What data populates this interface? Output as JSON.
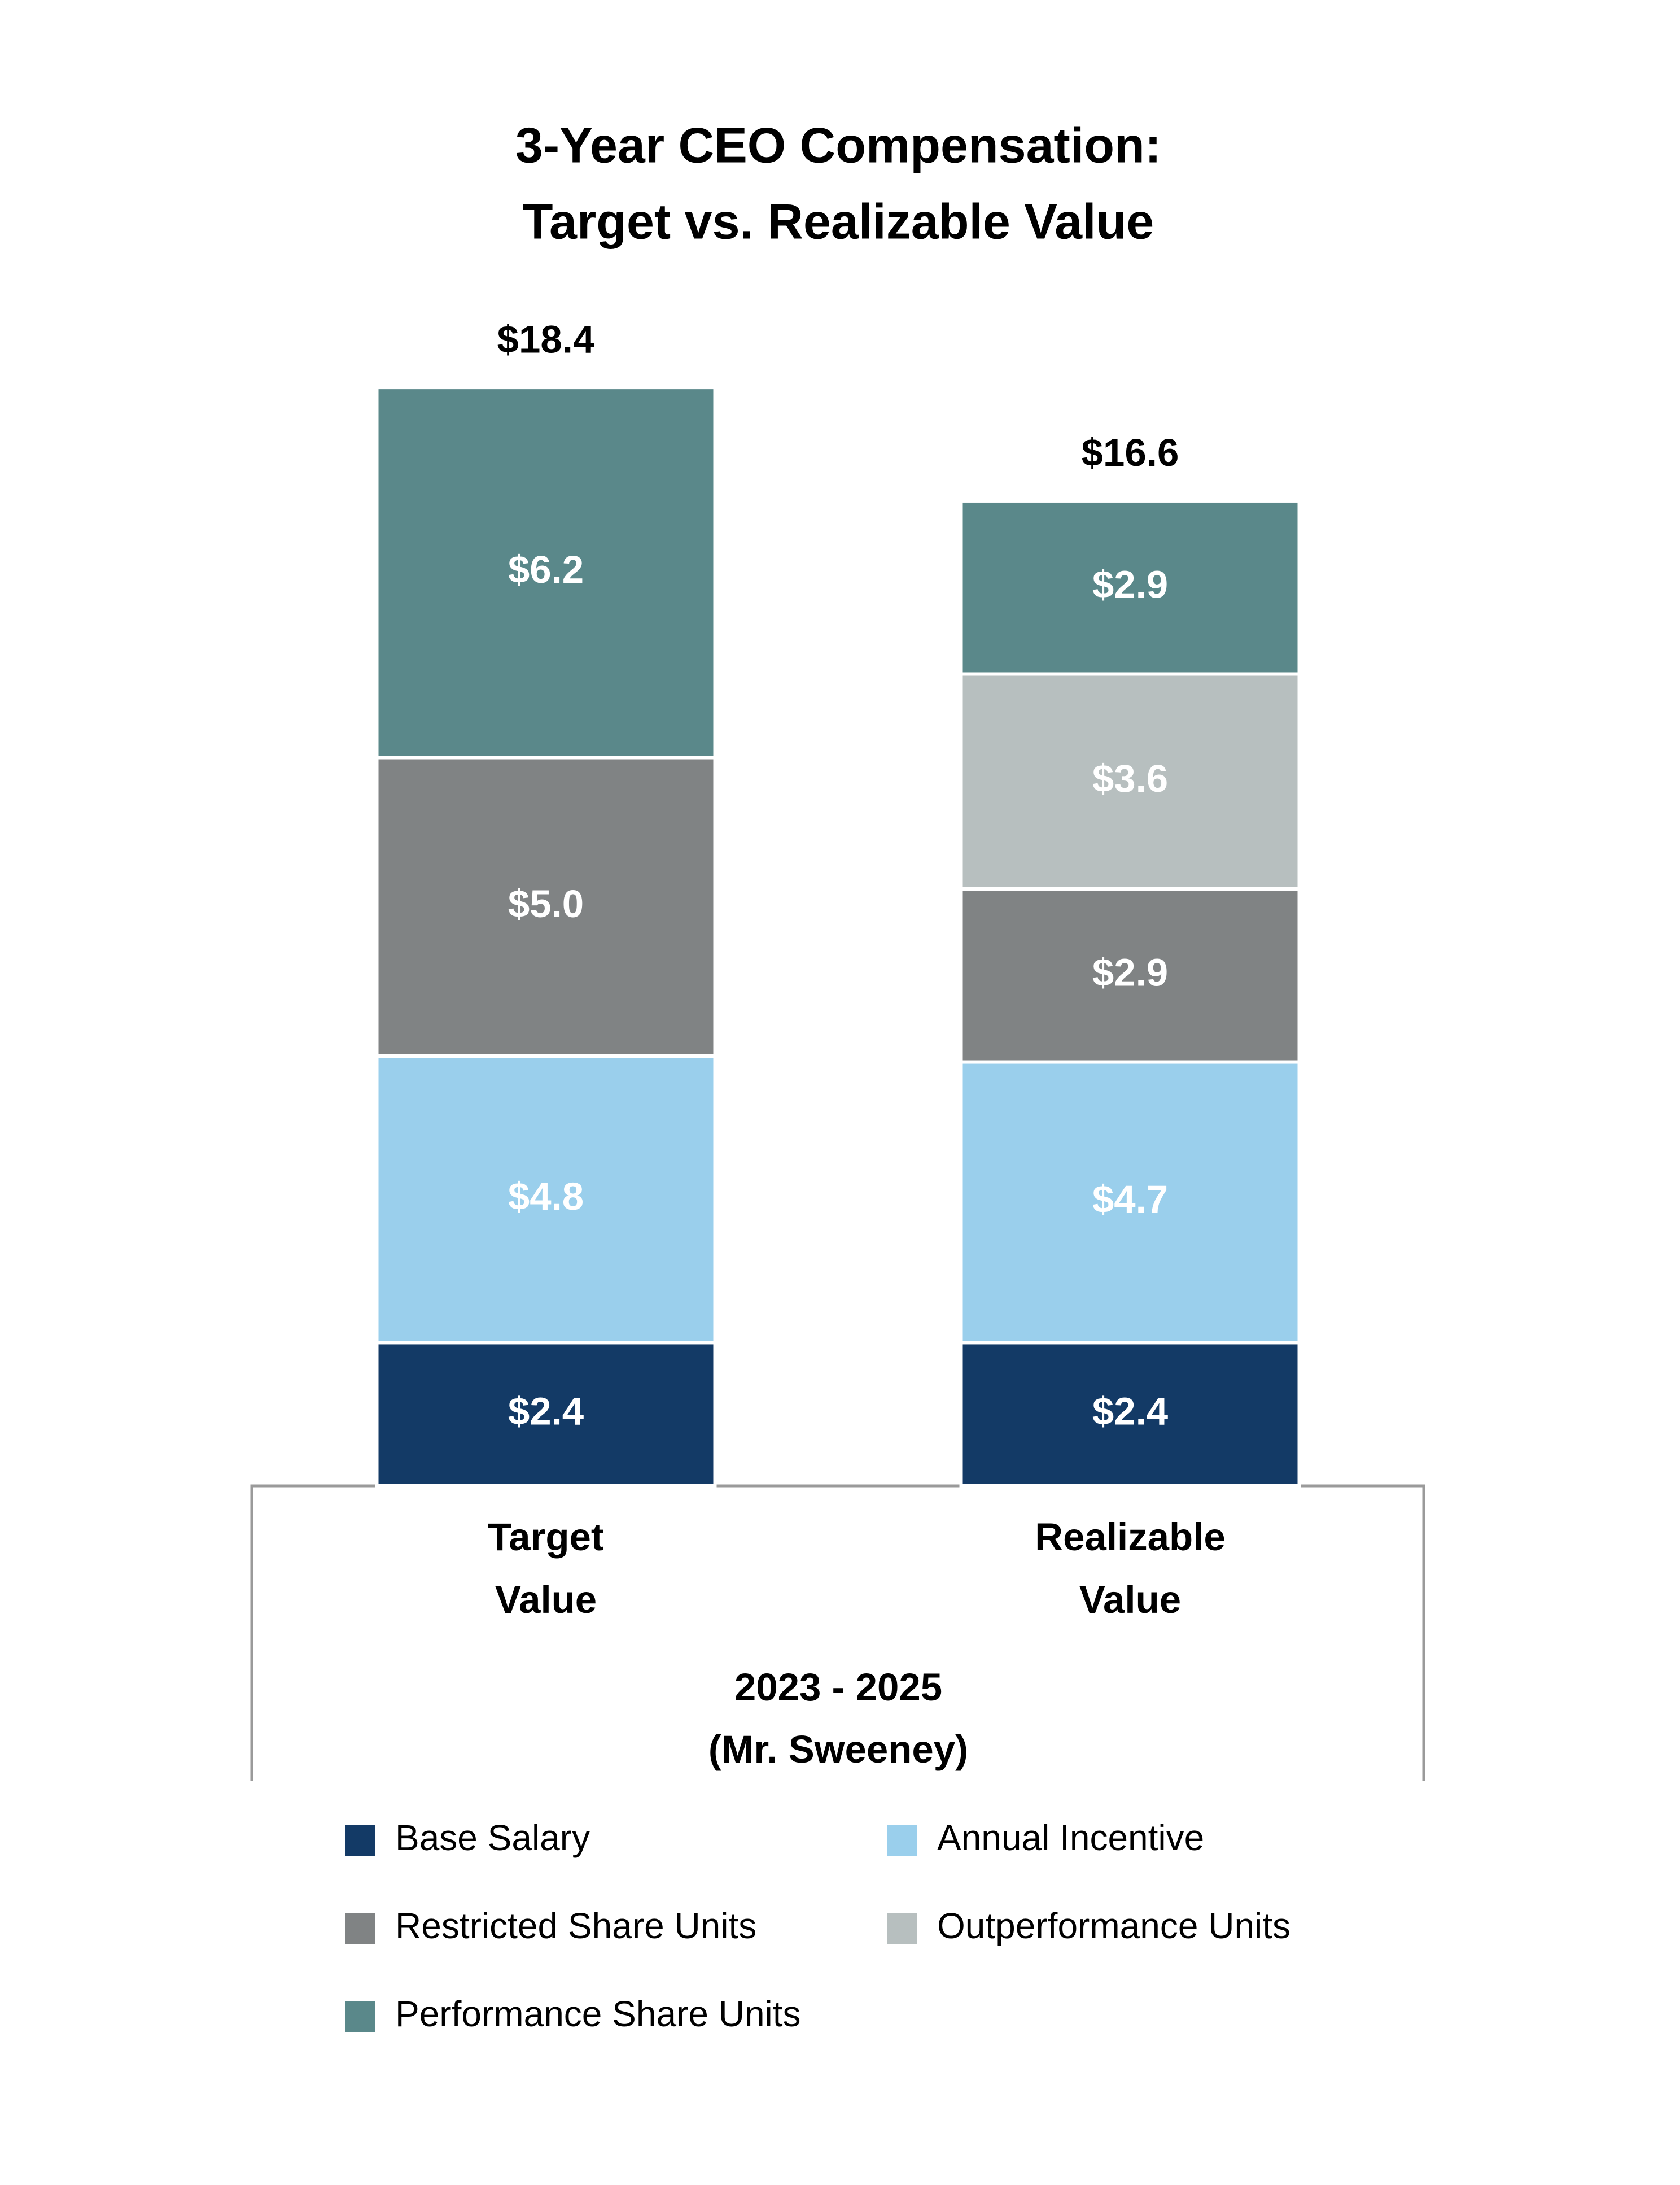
{
  "chart_data": {
    "type": "stacked-bar",
    "title": [
      "3-Year CEO Compensation:",
      "Target vs. Realizable Value"
    ],
    "categories": [
      "Target Value",
      "Realizable Value"
    ],
    "xlabel": [
      "2023 - 2025",
      "(Mr. Sweeney)"
    ],
    "ylim": [
      0,
      20
    ],
    "series": [
      {
        "name": "Base Salary",
        "color": "#133a66",
        "values": [
          2.4,
          2.4
        ],
        "value_labels": [
          "$2.4",
          "$2.4"
        ]
      },
      {
        "name": "Annual Incentive",
        "color": "#9acfec",
        "values": [
          4.8,
          4.7
        ],
        "value_labels": [
          "$4.8",
          "$4.7"
        ]
      },
      {
        "name": "Restricted Share Units",
        "color": "#808384",
        "values": [
          5.0,
          2.9
        ],
        "value_labels": [
          "$5.0",
          "$2.9"
        ]
      },
      {
        "name": "Outperformance Units",
        "color": "#b7bfbf",
        "values": [
          null,
          3.6
        ],
        "value_labels": [
          null,
          "$3.6"
        ]
      },
      {
        "name": "Performance Share Units",
        "color": "#5a888a",
        "values": [
          6.2,
          2.9
        ],
        "value_labels": [
          "$6.2",
          "$2.9"
        ]
      }
    ],
    "totals": {
      "values": [
        18.4,
        16.6
      ],
      "value_labels": [
        "$18.4",
        "$16.6"
      ]
    }
  }
}
